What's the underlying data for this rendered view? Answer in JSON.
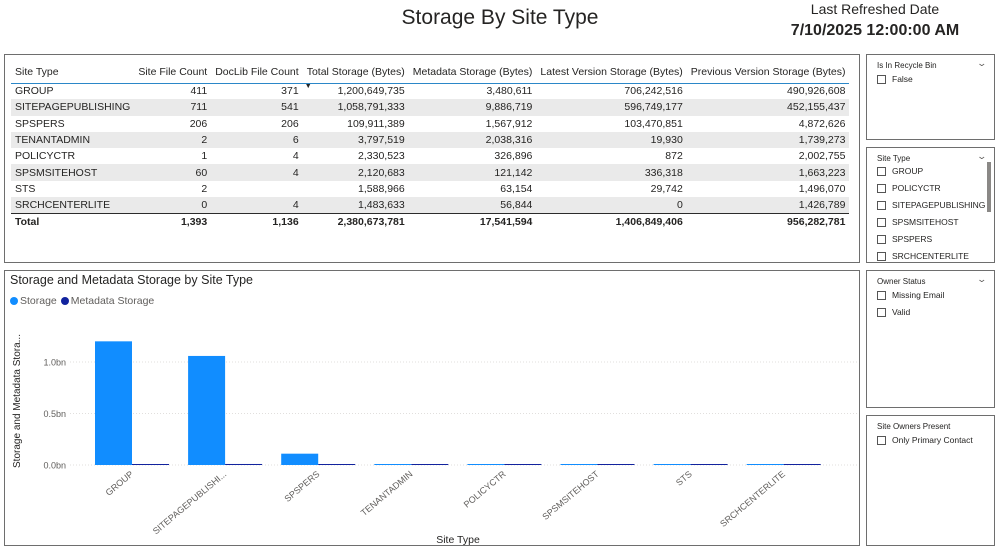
{
  "header": {
    "title": "Storage By Site Type",
    "refresh_label": "Last Refreshed Date",
    "refresh_value": "7/10/2025 12:00:00 AM"
  },
  "table": {
    "columns": [
      "Site Type",
      "Site File Count",
      "DocLib File Count",
      "Total Storage (Bytes)",
      "Metadata Storage (Bytes)",
      "Latest Version Storage (Bytes)",
      "Previous Version Storage (Bytes)"
    ],
    "sort_indicator": "▼",
    "rows": [
      [
        "GROUP",
        "411",
        "371",
        "1,200,649,735",
        "3,480,611",
        "706,242,516",
        "490,926,608"
      ],
      [
        "SITEPAGEPUBLISHING",
        "711",
        "541",
        "1,058,791,333",
        "9,886,719",
        "596,749,177",
        "452,155,437"
      ],
      [
        "SPSPERS",
        "206",
        "206",
        "109,911,389",
        "1,567,912",
        "103,470,851",
        "4,872,626"
      ],
      [
        "TENANTADMIN",
        "2",
        "6",
        "3,797,519",
        "2,038,316",
        "19,930",
        "1,739,273"
      ],
      [
        "POLICYCTR",
        "1",
        "4",
        "2,330,523",
        "326,896",
        "872",
        "2,002,755"
      ],
      [
        "SPSMSITEHOST",
        "60",
        "4",
        "2,120,683",
        "121,142",
        "336,318",
        "1,663,223"
      ],
      [
        "STS",
        "2",
        "",
        "1,588,966",
        "63,154",
        "29,742",
        "1,496,070"
      ],
      [
        "SRCHCENTERLITE",
        "0",
        "4",
        "1,483,633",
        "56,844",
        "0",
        "1,426,789"
      ]
    ],
    "total": [
      "Total",
      "1,393",
      "1,136",
      "2,380,673,781",
      "17,541,594",
      "1,406,849,406",
      "956,282,781"
    ]
  },
  "chart": {
    "title": "Storage and Metadata Storage by Site Type",
    "legend": [
      {
        "name": "Storage",
        "color": "#118dff"
      },
      {
        "name": "Metadata Storage",
        "color": "#12239e"
      }
    ],
    "xlabel": "Site Type",
    "ylabel": "Storage and Metadata Stora...",
    "y_ticks": [
      "0.0bn",
      "0.5bn",
      "1.0bn"
    ],
    "x_tick_labels": [
      "GROUP",
      "SITEPAGEPUBLISHI...",
      "SPSPERS",
      "TENANTADMIN",
      "POLICYCTR",
      "SPSMSITEHOST",
      "STS",
      "SRCHCENTERLITE"
    ]
  },
  "chart_data": {
    "type": "bar",
    "title": "Storage and Metadata Storage by Site Type",
    "categories": [
      "GROUP",
      "SITEPAGEPUBLISHING",
      "SPSPERS",
      "TENANTADMIN",
      "POLICYCTR",
      "SPSMSITEHOST",
      "STS",
      "SRCHCENTERLITE"
    ],
    "series": [
      {
        "name": "Storage",
        "color": "#118dff",
        "values": [
          1200649735,
          1058791333,
          109911389,
          3797519,
          2330523,
          2120683,
          1588966,
          1483633
        ]
      },
      {
        "name": "Metadata Storage",
        "color": "#12239e",
        "values": [
          3480611,
          9886719,
          1567912,
          2038316,
          326896,
          121142,
          63154,
          56844
        ]
      }
    ],
    "xlabel": "Site Type",
    "ylabel": "Storage and Metadata Stora...",
    "ylim": [
      0,
      1200000000
    ],
    "grid": true,
    "legend_position": "top-left"
  },
  "slicers": [
    {
      "title": "Is In Recycle Bin",
      "options": [
        "False"
      ]
    },
    {
      "title": "Site Type",
      "options": [
        "GROUP",
        "POLICYCTR",
        "SITEPAGEPUBLISHING",
        "SPSMSITEHOST",
        "SPSPERS",
        "SRCHCENTERLITE"
      ]
    },
    {
      "title": "Owner Status",
      "options": [
        "Missing Email",
        "Valid"
      ]
    },
    {
      "title": "Site Owners Present",
      "options": [
        "Only Primary Contact"
      ]
    }
  ],
  "icons": {
    "chevron": "chevron-down-icon",
    "checkbox": "checkbox-icon"
  }
}
